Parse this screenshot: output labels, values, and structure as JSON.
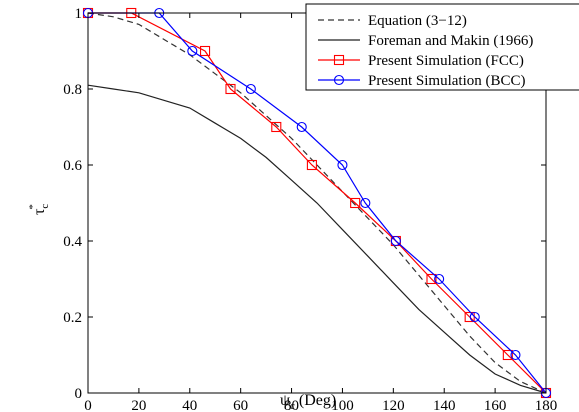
{
  "chart_data": {
    "type": "line",
    "xlabel_main": "ψ",
    "xlabel_sub": "c",
    "xlabel_rest": " (Deg)",
    "ylabel_main": "τ",
    "ylabel_sub": "c",
    "ylabel_sup": "*",
    "xlim": [
      0,
      180
    ],
    "ylim": [
      0,
      1
    ],
    "x_ticks": [
      0,
      20,
      40,
      60,
      80,
      100,
      120,
      140,
      160,
      180
    ],
    "x_tick_labels": [
      "0",
      "20",
      "40",
      "60",
      "80",
      "100",
      "120",
      "140",
      "160",
      "180"
    ],
    "y_ticks": [
      0,
      0.2,
      0.4,
      0.6,
      0.8,
      1
    ],
    "y_tick_labels": [
      "0",
      "0.2",
      "0.4",
      "0.6",
      "0.8",
      "1"
    ],
    "grid": false,
    "legend_position": "top-right",
    "series": [
      {
        "name": "Equation (3−12)",
        "style": "dashed",
        "marker": "none",
        "color": "#333333",
        "x": [
          0,
          10,
          20,
          30,
          40,
          50,
          60,
          70,
          80,
          90,
          100,
          110,
          120,
          130,
          140,
          150,
          160,
          170,
          180
        ],
        "y": [
          1.0,
          0.99,
          0.97,
          0.93,
          0.89,
          0.84,
          0.79,
          0.73,
          0.67,
          0.6,
          0.53,
          0.46,
          0.39,
          0.31,
          0.23,
          0.15,
          0.08,
          0.03,
          0.0
        ]
      },
      {
        "name": "Foreman and Makin (1966)",
        "style": "solid",
        "marker": "none",
        "color": "#222222",
        "x": [
          0,
          10,
          20,
          30,
          40,
          50,
          60,
          70,
          80,
          90,
          100,
          110,
          120,
          130,
          140,
          150,
          160,
          170,
          180
        ],
        "y": [
          0.81,
          0.8,
          0.79,
          0.77,
          0.75,
          0.71,
          0.67,
          0.62,
          0.56,
          0.5,
          0.43,
          0.36,
          0.29,
          0.22,
          0.16,
          0.1,
          0.05,
          0.02,
          0.0
        ]
      },
      {
        "name": "Present Simulation (FCC)",
        "style": "solid",
        "marker": "square",
        "color": "#ff0000",
        "x": [
          0,
          17,
          46,
          56,
          74,
          88,
          105,
          121,
          135,
          150,
          165,
          180
        ],
        "y": [
          1.0,
          1.0,
          0.9,
          0.8,
          0.7,
          0.6,
          0.5,
          0.4,
          0.3,
          0.2,
          0.1,
          0.0
        ]
      },
      {
        "name": "Present Simulation (BCC)",
        "style": "solid",
        "marker": "circle",
        "color": "#0000ff",
        "x": [
          0,
          28,
          41,
          64,
          84,
          100,
          109,
          121,
          138,
          152,
          168,
          180
        ],
        "y": [
          1.0,
          1.0,
          0.9,
          0.8,
          0.7,
          0.6,
          0.5,
          0.4,
          0.3,
          0.2,
          0.1,
          0.0
        ]
      }
    ]
  }
}
